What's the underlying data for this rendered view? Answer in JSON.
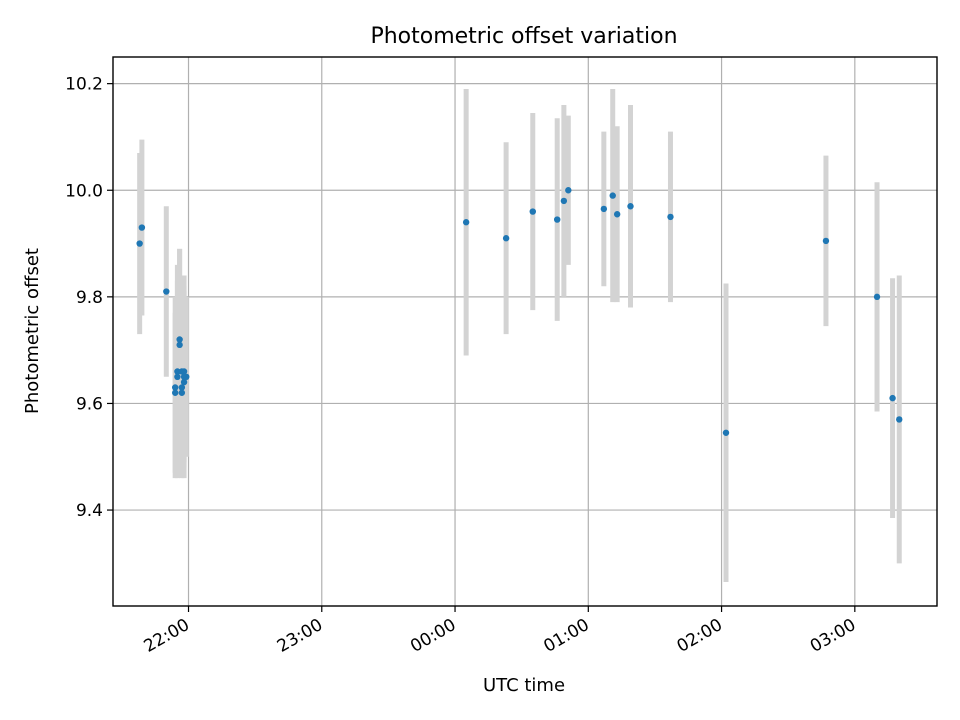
{
  "chart_data": {
    "type": "scatter",
    "title": "Photometric offset variation",
    "xlabel": "UTC time",
    "ylabel": "Photometric offset",
    "grid": true,
    "x_axis": {
      "kind": "time",
      "range": [
        "21:26",
        "03:37"
      ],
      "ticks": [
        "22:00",
        "23:00",
        "00:00",
        "01:00",
        "02:00",
        "03:00"
      ]
    },
    "y_axis": {
      "range": [
        9.22,
        10.25
      ],
      "ticks": [
        "9.4",
        "9.6",
        "9.8",
        "10.0",
        "10.2"
      ]
    },
    "colors": {
      "marker": "#1f77b4",
      "errorbar": "#d3d3d3",
      "grid": "#b0b0b0"
    },
    "points": [
      {
        "time": "21:38",
        "y": 9.9,
        "err": 0.17
      },
      {
        "time": "21:39",
        "y": 9.93,
        "err": 0.165
      },
      {
        "time": "21:50",
        "y": 9.81,
        "err": 0.16
      },
      {
        "time": "21:54",
        "y": 9.62,
        "err": 0.15
      },
      {
        "time": "21:54",
        "y": 9.63,
        "err": 0.17
      },
      {
        "time": "21:55",
        "y": 9.66,
        "err": 0.2
      },
      {
        "time": "21:55",
        "y": 9.65,
        "err": 0.18
      },
      {
        "time": "21:56",
        "y": 9.71,
        "err": 0.18
      },
      {
        "time": "21:56",
        "y": 9.72,
        "err": 0.17
      },
      {
        "time": "21:57",
        "y": 9.66,
        "err": 0.18
      },
      {
        "time": "21:57",
        "y": 9.63,
        "err": 0.16
      },
      {
        "time": "21:57",
        "y": 9.62,
        "err": 0.16
      },
      {
        "time": "21:58",
        "y": 9.64,
        "err": 0.18
      },
      {
        "time": "21:58",
        "y": 9.66,
        "err": 0.18
      },
      {
        "time": "21:58",
        "y": 9.65,
        "err": 0.16
      },
      {
        "time": "21:59",
        "y": 9.65,
        "err": 0.15
      },
      {
        "time": "00:05",
        "y": 9.94,
        "err": 0.25
      },
      {
        "time": "00:23",
        "y": 9.91,
        "err": 0.18
      },
      {
        "time": "00:35",
        "y": 9.96,
        "err": 0.185
      },
      {
        "time": "00:46",
        "y": 9.945,
        "err": 0.19
      },
      {
        "time": "00:49",
        "y": 9.98,
        "err": 0.18
      },
      {
        "time": "00:51",
        "y": 10.0,
        "err": 0.14
      },
      {
        "time": "01:07",
        "y": 9.965,
        "err": 0.145
      },
      {
        "time": "01:11",
        "y": 9.99,
        "err": 0.2
      },
      {
        "time": "01:13",
        "y": 9.955,
        "err": 0.165
      },
      {
        "time": "01:19",
        "y": 9.97,
        "err": 0.19
      },
      {
        "time": "01:37",
        "y": 9.95,
        "err": 0.16
      },
      {
        "time": "02:02",
        "y": 9.545,
        "err": 0.28
      },
      {
        "time": "02:47",
        "y": 9.905,
        "err": 0.16
      },
      {
        "time": "03:10",
        "y": 9.8,
        "err": 0.215
      },
      {
        "time": "03:17",
        "y": 9.61,
        "err": 0.225
      },
      {
        "time": "03:20",
        "y": 9.57,
        "err": 0.27
      }
    ]
  }
}
